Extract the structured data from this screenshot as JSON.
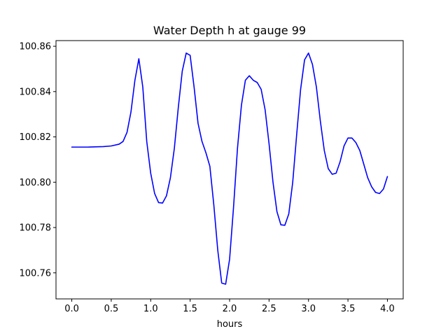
{
  "chart_data": {
    "type": "line",
    "title": "Water Depth h at gauge 99",
    "xlabel": "hours",
    "ylabel": "",
    "xlim": [
      -0.2,
      4.2
    ],
    "ylim": [
      100.7485,
      100.8625
    ],
    "xticks": [
      0.0,
      0.5,
      1.0,
      1.5,
      2.0,
      2.5,
      3.0,
      3.5,
      4.0
    ],
    "xtick_labels": [
      "0.0",
      "0.5",
      "1.0",
      "1.5",
      "2.0",
      "2.5",
      "3.0",
      "3.5",
      "4.0"
    ],
    "yticks": [
      100.76,
      100.78,
      100.8,
      100.82,
      100.84,
      100.86
    ],
    "ytick_labels": [
      "100.76",
      "100.78",
      "100.80",
      "100.82",
      "100.84",
      "100.86"
    ],
    "grid": false,
    "line_color": "#0000ff",
    "series": [
      {
        "x": [
          0.0,
          0.2,
          0.4,
          0.5,
          0.6,
          0.65,
          0.7,
          0.75,
          0.8,
          0.85,
          0.9,
          0.95,
          1.0,
          1.05,
          1.1,
          1.15,
          1.2,
          1.25,
          1.3,
          1.35,
          1.4,
          1.45,
          1.5,
          1.55,
          1.6,
          1.65,
          1.7,
          1.75,
          1.8,
          1.85,
          1.9,
          1.95,
          2.0,
          2.05,
          2.1,
          2.15,
          2.2,
          2.25,
          2.3,
          2.35,
          2.4,
          2.45,
          2.5,
          2.55,
          2.6,
          2.65,
          2.7,
          2.75,
          2.8,
          2.85,
          2.9,
          2.95,
          3.0,
          3.05,
          3.1,
          3.15,
          3.2,
          3.25,
          3.3,
          3.35,
          3.4,
          3.45,
          3.5,
          3.55,
          3.6,
          3.65,
          3.7,
          3.75,
          3.8,
          3.85,
          3.9,
          3.95,
          4.0
        ],
        "y": [
          100.8155,
          100.8155,
          100.8157,
          100.816,
          100.8168,
          100.818,
          100.822,
          100.831,
          100.845,
          100.8545,
          100.842,
          100.818,
          100.804,
          100.795,
          100.791,
          100.7908,
          100.794,
          100.802,
          100.815,
          100.833,
          100.849,
          100.857,
          100.856,
          100.842,
          100.826,
          100.818,
          100.813,
          100.807,
          100.79,
          100.77,
          100.7555,
          100.755,
          100.766,
          100.789,
          100.815,
          100.834,
          100.845,
          100.847,
          100.845,
          100.844,
          100.841,
          100.832,
          100.817,
          100.8,
          100.787,
          100.7812,
          100.781,
          100.786,
          100.8,
          100.821,
          100.841,
          100.854,
          100.857,
          100.852,
          100.842,
          100.827,
          100.814,
          100.806,
          100.8035,
          100.804,
          100.809,
          100.816,
          100.8195,
          100.8195,
          100.8175,
          100.814,
          100.808,
          100.802,
          100.798,
          100.7955,
          100.795,
          100.797,
          100.8025
        ]
      }
    ]
  }
}
